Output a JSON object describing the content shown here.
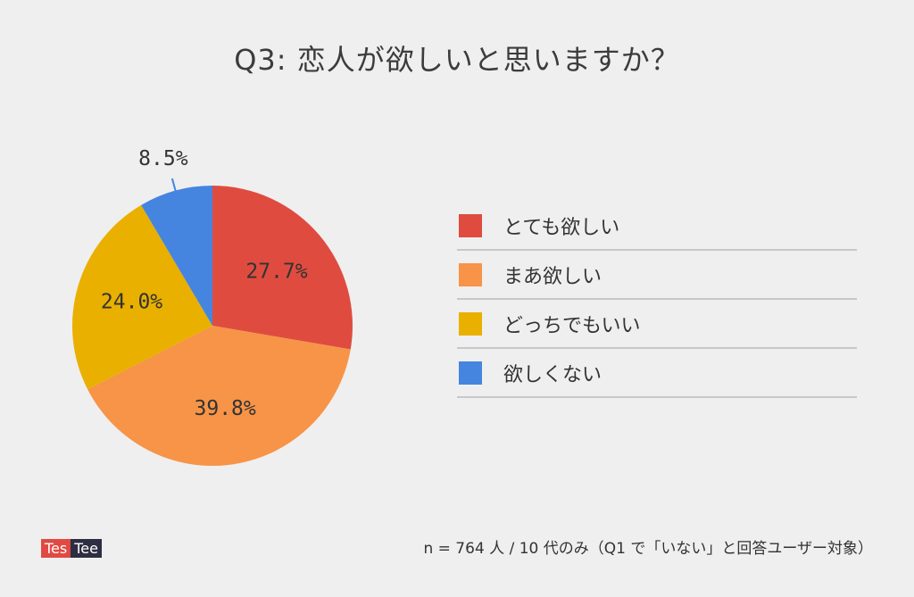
{
  "title": "Q3: 恋人が欲しいと思いますか？",
  "chart_data": {
    "type": "pie",
    "categories": [
      "とても欲しい",
      "まあ欲しい",
      "どっちでもいい",
      "欲しくない"
    ],
    "values": [
      27.7,
      39.8,
      24.0,
      8.5
    ],
    "value_labels": [
      "27.7%",
      "39.8%",
      "24.0%",
      "8.5%"
    ],
    "colors": [
      "#df4c3f",
      "#f79447",
      "#e9b000",
      "#4585e0"
    ],
    "legend_position": "right"
  },
  "footer": {
    "note": "n = 764 人 / 10 代のみ（Q1 で「いない」と回答ユーザー対象）",
    "logo_part1": "Tes",
    "logo_part2": "Tee"
  }
}
